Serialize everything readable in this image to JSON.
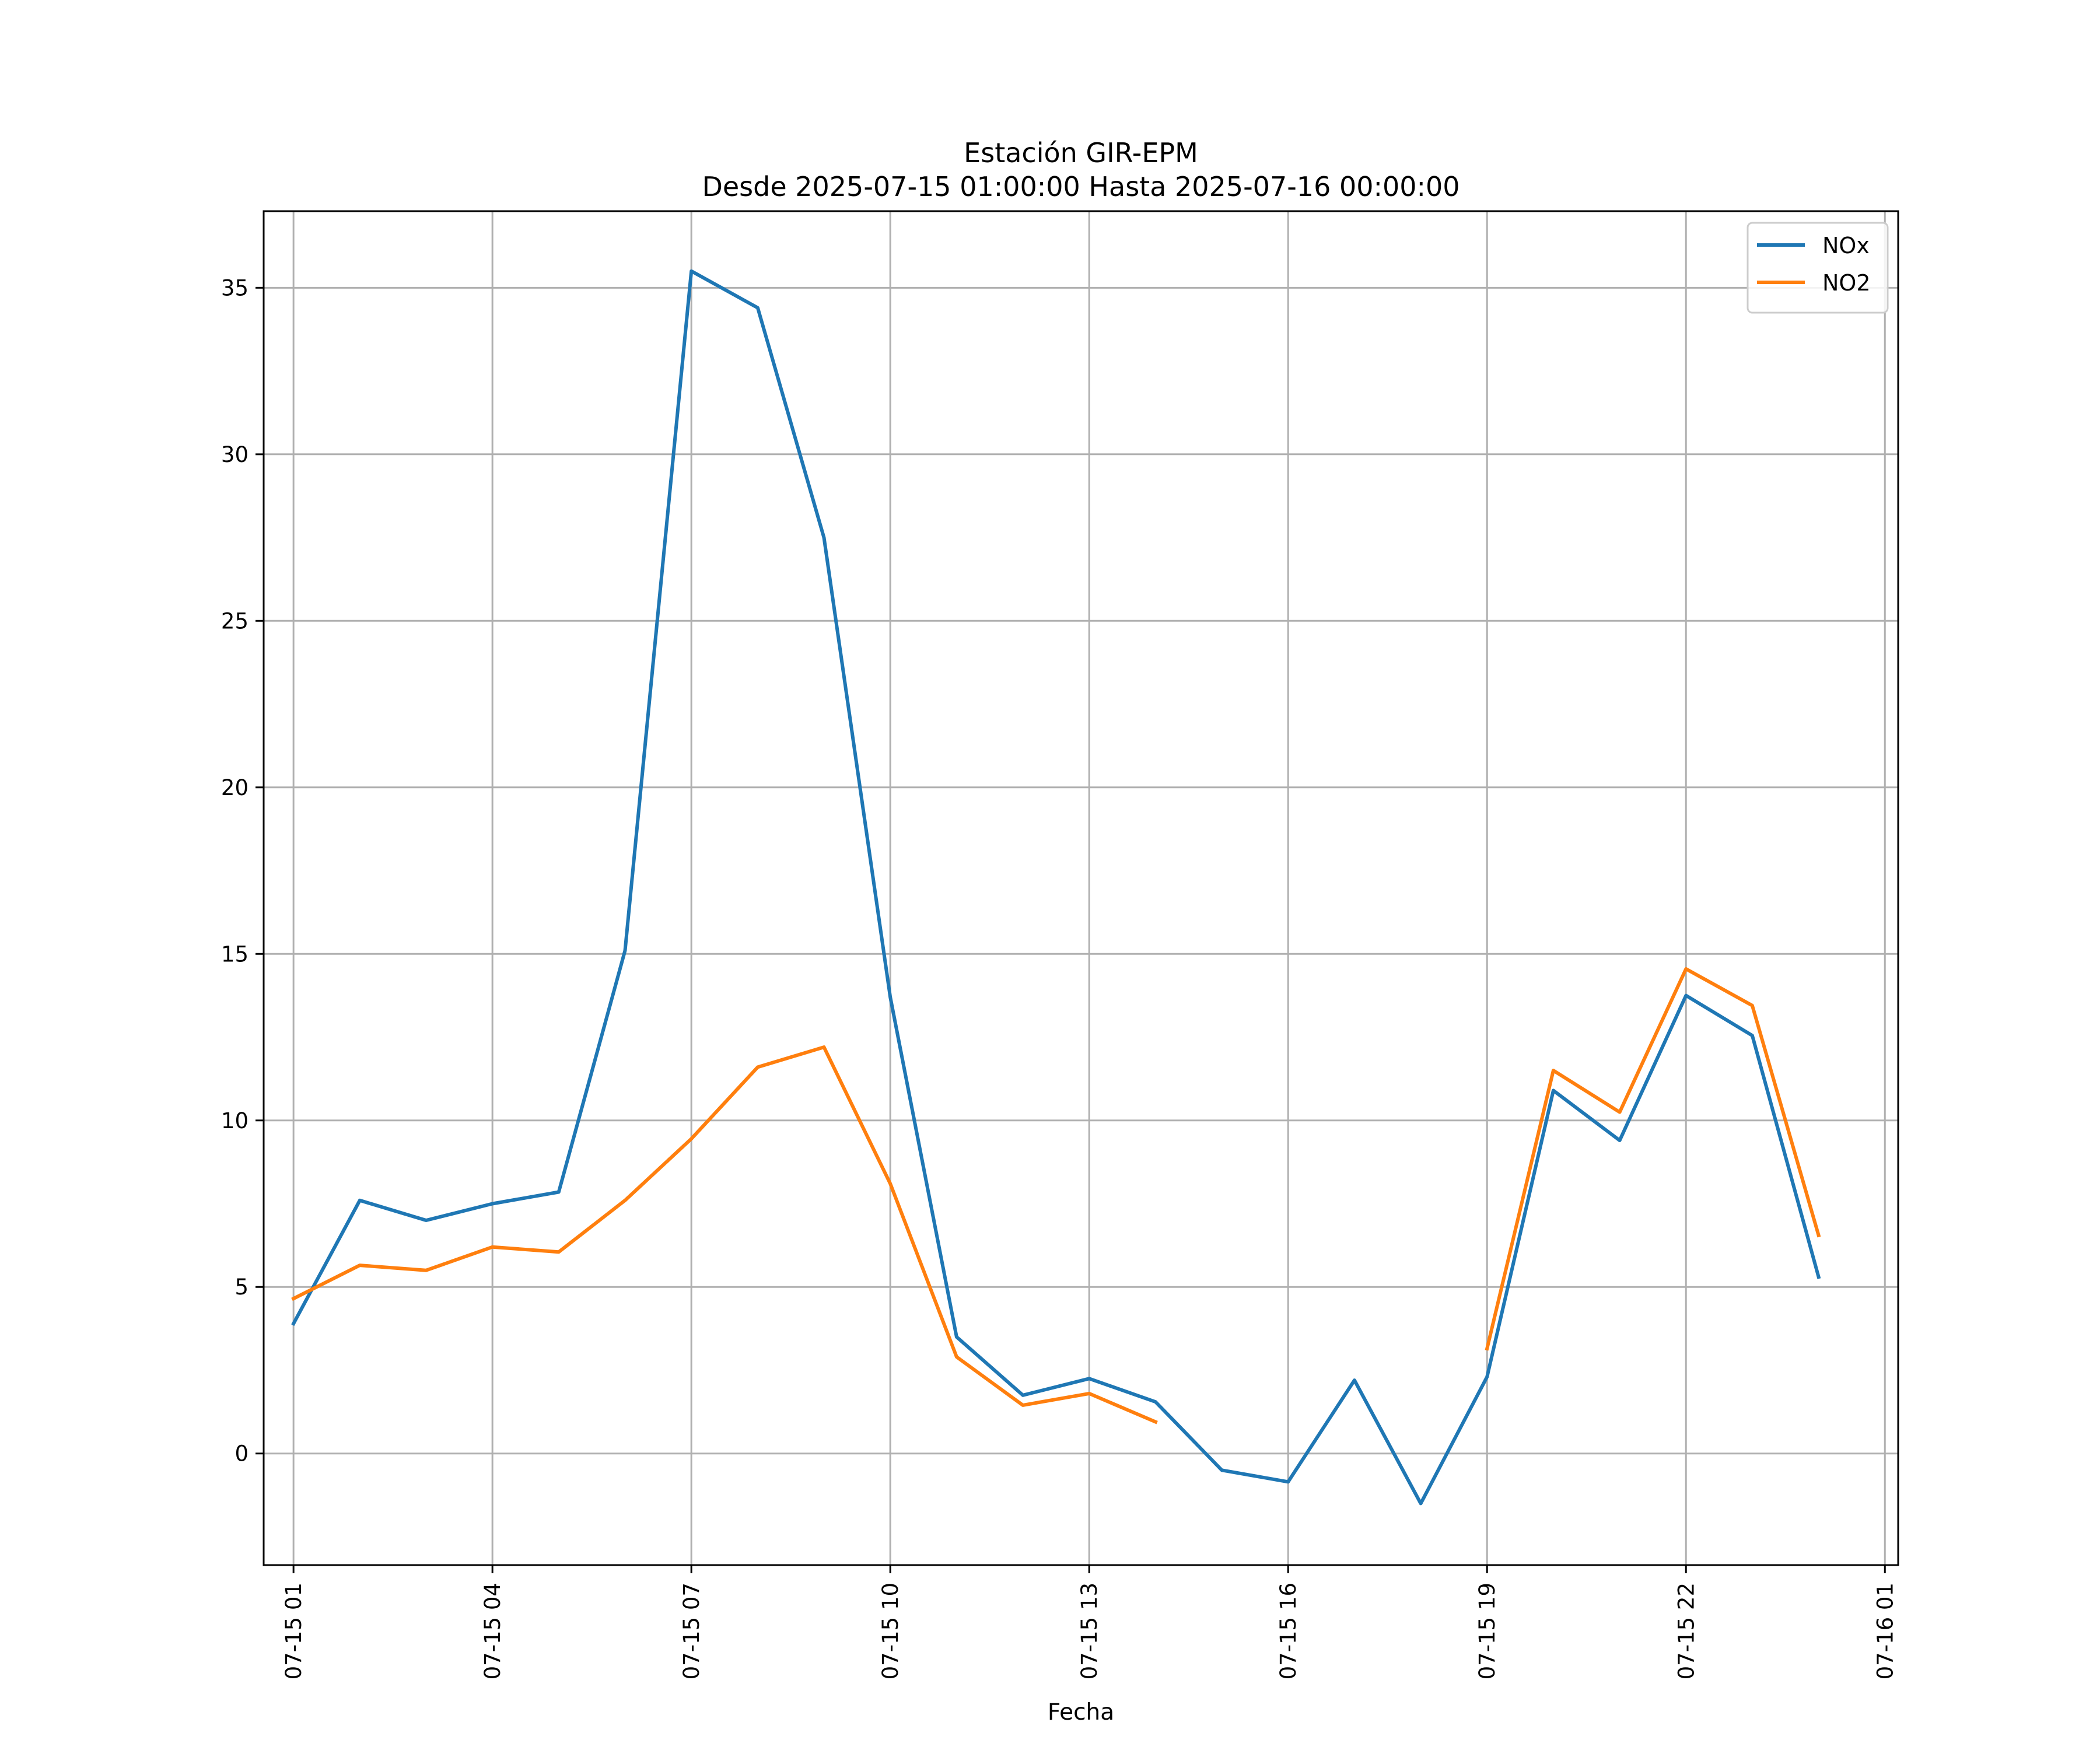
{
  "chart_data": {
    "type": "line",
    "title_lines": [
      "Estación GIR-EPM",
      "Desde 2025-07-15 01:00:00 Hasta 2025-07-16 00:00:00"
    ],
    "xlabel": "Fecha",
    "ylabel": "",
    "x_unit": "hours since 2025-07-15 00:00",
    "xlim": [
      0.55,
      25.2
    ],
    "ylim": [
      -3.35,
      37.3
    ],
    "grid": true,
    "legend_position": "top-right",
    "x_ticks": [
      {
        "value": 1,
        "label": "07-15 01"
      },
      {
        "value": 4,
        "label": "07-15 04"
      },
      {
        "value": 7,
        "label": "07-15 07"
      },
      {
        "value": 10,
        "label": "07-15 10"
      },
      {
        "value": 13,
        "label": "07-15 13"
      },
      {
        "value": 16,
        "label": "07-15 16"
      },
      {
        "value": 19,
        "label": "07-15 19"
      },
      {
        "value": 22,
        "label": "07-15 22"
      },
      {
        "value": 25,
        "label": "07-16 01"
      }
    ],
    "y_ticks": [
      {
        "value": 0,
        "label": "0"
      },
      {
        "value": 5,
        "label": "5"
      },
      {
        "value": 10,
        "label": "10"
      },
      {
        "value": 15,
        "label": "15"
      },
      {
        "value": 20,
        "label": "20"
      },
      {
        "value": 25,
        "label": "25"
      },
      {
        "value": 30,
        "label": "30"
      },
      {
        "value": 35,
        "label": "35"
      }
    ],
    "x": [
      1,
      2,
      3,
      4,
      5,
      6,
      7,
      8,
      9,
      10,
      11,
      12,
      13,
      14,
      15,
      16,
      17,
      18,
      19,
      20,
      21,
      22,
      23,
      24
    ],
    "series": [
      {
        "name": "NOx",
        "color": "#1f77b4",
        "values": [
          3.9,
          7.6,
          7.0,
          7.5,
          7.85,
          15.1,
          35.5,
          34.4,
          27.5,
          13.7,
          3.5,
          1.75,
          2.25,
          1.55,
          -0.5,
          -0.85,
          2.2,
          -1.5,
          2.3,
          10.9,
          9.4,
          13.75,
          12.55,
          5.3
        ]
      },
      {
        "name": "NO2",
        "color": "#ff7f0e",
        "values": [
          4.65,
          5.65,
          5.5,
          6.2,
          6.05,
          7.6,
          9.45,
          11.6,
          12.2,
          8.1,
          2.9,
          1.45,
          1.8,
          0.95,
          null,
          null,
          null,
          null,
          3.15,
          11.5,
          10.25,
          14.55,
          13.45,
          6.55
        ]
      }
    ]
  }
}
